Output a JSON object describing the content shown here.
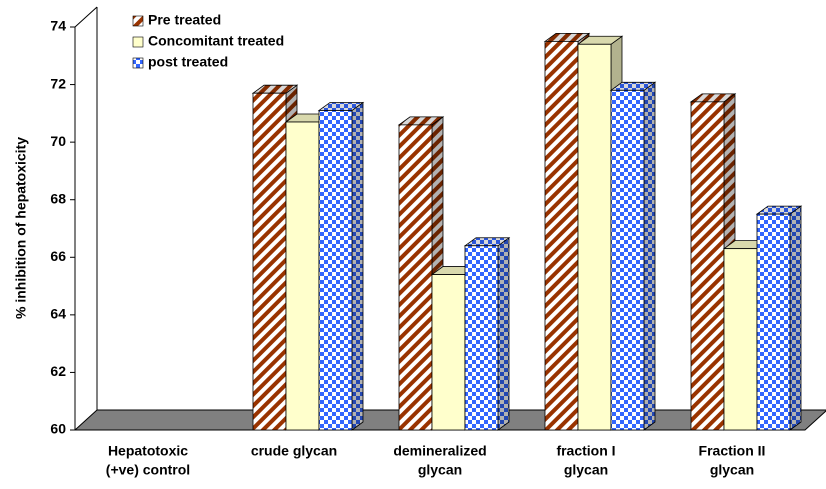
{
  "chart_data": {
    "type": "bar3d",
    "ylabel": "% inhibition of hepatoxicity",
    "categories": [
      [
        "Hepatotoxic",
        "(+ve) control"
      ],
      [
        "crude glycan"
      ],
      [
        "demineralized",
        "glycan"
      ],
      [
        "fraction I",
        "glycan"
      ],
      [
        "Fraction II",
        "glycan"
      ]
    ],
    "series": [
      {
        "name": "Pre treated",
        "color": "#993300",
        "pattern": "diagonal",
        "values": [
          null,
          71.7,
          70.6,
          73.5,
          71.4
        ]
      },
      {
        "name": "Concomitant treated",
        "color": "#ffffcc",
        "pattern": "solid",
        "values": [
          null,
          70.7,
          65.4,
          73.4,
          66.3
        ]
      },
      {
        "name": "post treated",
        "color": "#3366ff",
        "pattern": "checker",
        "values": [
          null,
          71.1,
          66.4,
          71.8,
          67.5
        ]
      }
    ],
    "ylim": [
      60,
      74
    ],
    "yticks": [
      60,
      62,
      64,
      66,
      68,
      70,
      72,
      74
    ],
    "legend": "top-left"
  }
}
